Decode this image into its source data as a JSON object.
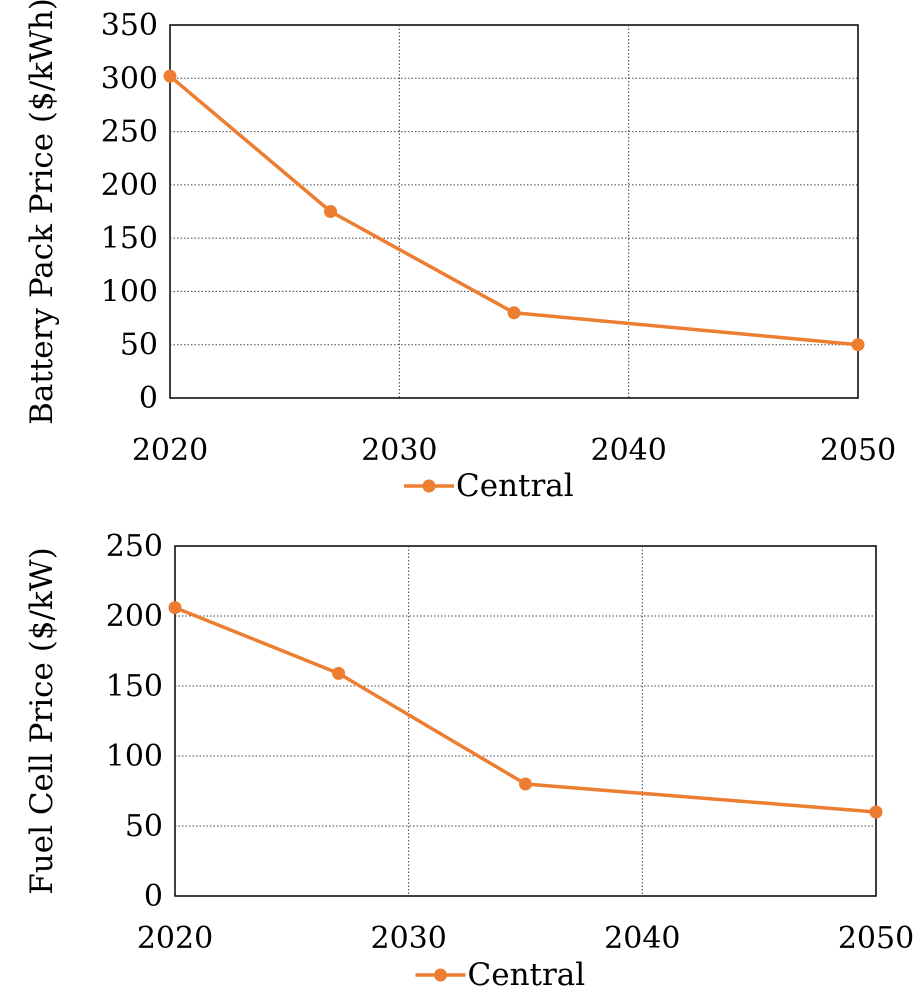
{
  "colors": {
    "series": "#ED7D31",
    "axis": "#000000",
    "grid": "#404040",
    "background": "#FFFFFF"
  },
  "chart_data": [
    {
      "type": "line",
      "title": "",
      "xlabel": "",
      "ylabel": "Battery Pack Price ($/kWh)",
      "x": [
        2020,
        2027,
        2035,
        2050
      ],
      "series": [
        {
          "name": "Central",
          "values": [
            302,
            175,
            80,
            50
          ]
        }
      ],
      "xlim": [
        2020,
        2050
      ],
      "ylim": [
        0,
        350
      ],
      "xticks": [
        "2020",
        "2030",
        "2040",
        "2050"
      ],
      "yticks": [
        "0",
        "50",
        "100",
        "150",
        "200",
        "250",
        "300",
        "350"
      ],
      "grid": "dotted",
      "legend": "bottom"
    },
    {
      "type": "line",
      "title": "",
      "xlabel": "",
      "ylabel": "Fuel Cell Price ($/kW)",
      "x": [
        2020,
        2027,
        2035,
        2050
      ],
      "series": [
        {
          "name": "Central",
          "values": [
            206,
            159,
            80,
            60
          ]
        }
      ],
      "xlim": [
        2020,
        2050
      ],
      "ylim": [
        0,
        250
      ],
      "xticks": [
        "2020",
        "2030",
        "2040",
        "2050"
      ],
      "yticks": [
        "0",
        "50",
        "100",
        "150",
        "200",
        "250"
      ],
      "grid": "dotted",
      "legend": "bottom"
    }
  ]
}
